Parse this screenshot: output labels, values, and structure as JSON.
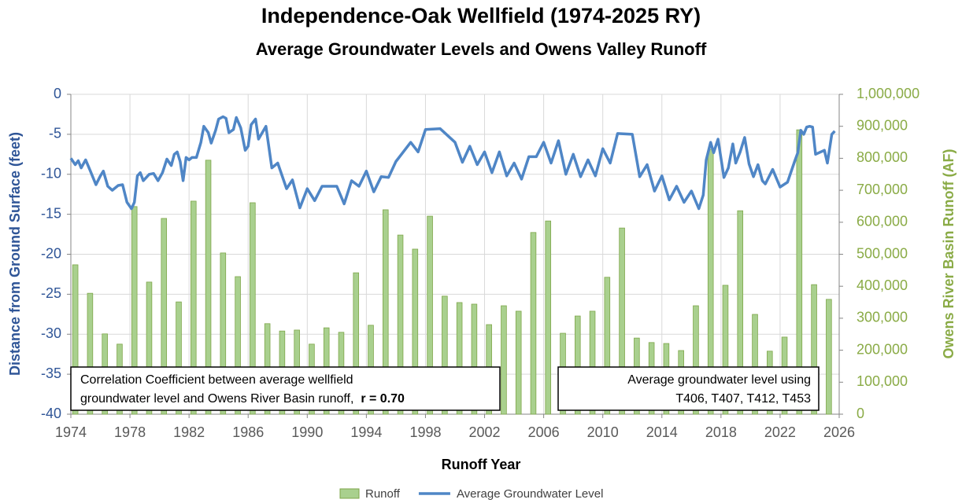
{
  "chart_data": {
    "type": "combo",
    "title": "Independence-Oak Wellfield (1974-2025 RY)",
    "subtitle": "Average Groundwater Levels and Owens Valley Runoff",
    "xlabel": "Runoff Year",
    "ylabel": "Distance from Ground Surface (feet)",
    "y2label": "Owens River Basin Runoff (AF)",
    "xlim": [
      1974,
      2026
    ],
    "xticks": [
      1974,
      1978,
      1982,
      1986,
      1990,
      1994,
      1998,
      2002,
      2006,
      2010,
      2014,
      2018,
      2022,
      2026
    ],
    "ylim": [
      -40,
      0
    ],
    "yticks": [
      0,
      -5,
      -10,
      -15,
      -20,
      -25,
      -30,
      -35,
      -40
    ],
    "y2lim": [
      0,
      1000000
    ],
    "y2ticks": [
      {
        "value": 1000000,
        "label": "1,000,000"
      },
      {
        "value": 900000,
        "label": "900,000"
      },
      {
        "value": 800000,
        "label": "800,000"
      },
      {
        "value": 700000,
        "label": "700,000"
      },
      {
        "value": 600000,
        "label": "600,000"
      },
      {
        "value": 500000,
        "label": "500,000"
      },
      {
        "value": 400000,
        "label": "400,000"
      },
      {
        "value": 300000,
        "label": "300,000"
      },
      {
        "value": 200000,
        "label": "200,000"
      },
      {
        "value": 100000,
        "label": "100,000"
      },
      {
        "value": 0,
        "label": "0"
      }
    ],
    "grid": true,
    "legend": "bottom",
    "series": [
      {
        "name": "Runoff",
        "type": "bar",
        "axis": "y2",
        "color": "#a9d08e",
        "x": [
          1974,
          1975,
          1976,
          1977,
          1978,
          1979,
          1980,
          1981,
          1982,
          1983,
          1984,
          1985,
          1986,
          1987,
          1988,
          1989,
          1990,
          1991,
          1992,
          1993,
          1994,
          1995,
          1996,
          1997,
          1998,
          1999,
          2000,
          2001,
          2002,
          2003,
          2004,
          2005,
          2006,
          2007,
          2008,
          2009,
          2010,
          2011,
          2012,
          2013,
          2014,
          2015,
          2016,
          2017,
          2018,
          2019,
          2020,
          2021,
          2022,
          2023,
          2024,
          2025
        ],
        "values": [
          467000,
          378000,
          251000,
          219000,
          649000,
          413000,
          612000,
          351000,
          666000,
          794000,
          504000,
          430000,
          661000,
          283000,
          260000,
          263000,
          219000,
          270000,
          256000,
          442000,
          278000,
          639000,
          560000,
          516000,
          619000,
          369000,
          349000,
          344000,
          280000,
          339000,
          322000,
          568000,
          604000,
          253000,
          307000,
          322000,
          428000,
          582000,
          238000,
          224000,
          221000,
          199000,
          339000,
          828000,
          403000,
          636000,
          312000,
          197000,
          241000,
          889000,
          405000,
          359000
        ]
      },
      {
        "name": "Average Groundwater Level",
        "type": "line",
        "color": "#4f86c6",
        "x": [
          1974.0,
          1974.3,
          1974.5,
          1974.7,
          1975.0,
          1975.3,
          1975.7,
          1976.0,
          1976.2,
          1976.5,
          1976.8,
          1977.2,
          1977.5,
          1977.8,
          1978.1,
          1978.3,
          1978.5,
          1978.7,
          1978.9,
          1979.3,
          1979.6,
          1979.9,
          1980.2,
          1980.5,
          1980.8,
          1981.0,
          1981.2,
          1981.4,
          1981.6,
          1981.8,
          1982.0,
          1982.2,
          1982.5,
          1982.8,
          1983.0,
          1983.3,
          1983.5,
          1983.8,
          1984.0,
          1984.3,
          1984.5,
          1984.7,
          1985.0,
          1985.2,
          1985.5,
          1985.8,
          1986.0,
          1986.2,
          1986.5,
          1986.7,
          1987.2,
          1987.6,
          1988.0,
          1988.6,
          1989.0,
          1989.5,
          1990.0,
          1990.5,
          1991.0,
          1992.0,
          1992.5,
          1993.0,
          1993.5,
          1994.0,
          1994.5,
          1995.0,
          1995.5,
          1996.0,
          1996.5,
          1997.0,
          1997.5,
          1998.0,
          1999.0,
          2000.0,
          2000.5,
          2001.0,
          2001.5,
          2002.0,
          2002.5,
          2003.0,
          2003.5,
          2004.0,
          2004.5,
          2005.0,
          2005.5,
          2006.0,
          2006.5,
          2007.0,
          2007.5,
          2008.0,
          2008.5,
          2009.0,
          2009.5,
          2010.0,
          2010.5,
          2011.0,
          2012.0,
          2012.5,
          2013.0,
          2013.5,
          2014.0,
          2014.5,
          2015.0,
          2015.5,
          2016.0,
          2016.5,
          2016.8,
          2017.0,
          2017.3,
          2017.5,
          2017.8,
          2018.2,
          2018.5,
          2018.8,
          2019.0,
          2019.3,
          2019.6,
          2019.9,
          2020.2,
          2020.5,
          2020.8,
          2021.0,
          2021.5,
          2022.0,
          2022.5,
          2023.0,
          2023.2,
          2023.4,
          2023.6,
          2023.8,
          2024.0,
          2024.2,
          2024.4,
          2025.0,
          2025.2,
          2025.5,
          2025.7
        ],
        "values": [
          -8,
          -8.8,
          -8.3,
          -9.2,
          -8.2,
          -9.5,
          -11.3,
          -10.2,
          -9.6,
          -11.5,
          -12,
          -11.4,
          -11.3,
          -13.5,
          -14.3,
          -13.5,
          -10.2,
          -9.8,
          -10.8,
          -10,
          -9.9,
          -10.8,
          -9.8,
          -8.1,
          -8.9,
          -7.5,
          -7.2,
          -8.4,
          -10.8,
          -7.9,
          -8.2,
          -7.9,
          -7.9,
          -6,
          -4,
          -4.8,
          -6.1,
          -4.5,
          -3.1,
          -2.8,
          -3,
          -4.8,
          -4.4,
          -2.9,
          -4.2,
          -7,
          -6.5,
          -3.8,
          -3.1,
          -5.6,
          -4,
          -9.2,
          -8.6,
          -11.8,
          -10.7,
          -14.2,
          -11.8,
          -13.3,
          -11.5,
          -11.5,
          -13.7,
          -10.8,
          -11.5,
          -9.6,
          -12.2,
          -10.3,
          -10.4,
          -8.4,
          -7.2,
          -6,
          -7.2,
          -4.4,
          -4.3,
          -6,
          -8.5,
          -6.5,
          -8.8,
          -7.2,
          -9.8,
          -7.2,
          -10.2,
          -8.6,
          -10.6,
          -7.8,
          -7.8,
          -6,
          -8.6,
          -5.8,
          -10,
          -7.5,
          -10.3,
          -8.2,
          -10.2,
          -6.8,
          -8.6,
          -4.9,
          -5,
          -10.3,
          -8.8,
          -12.1,
          -10.2,
          -13.2,
          -11.5,
          -13.5,
          -12.1,
          -14.3,
          -12.6,
          -8.2,
          -6,
          -7.3,
          -5.6,
          -10.4,
          -9.2,
          -6.2,
          -8.6,
          -7.2,
          -5.4,
          -8.7,
          -10.3,
          -8.8,
          -10.8,
          -11.2,
          -9.4,
          -11.6,
          -11,
          -8.3,
          -7.3,
          -4.5,
          -5,
          -4.1,
          -4,
          -4.1,
          -7.5,
          -7,
          -8.6,
          -5,
          -4.6
        ]
      }
    ],
    "annotations": [
      {
        "lines": [
          "Correlation Coefficient between average wellfield",
          "groundwater level and Owens River Basin runoff,"
        ],
        "emphasis": "r = 0.70"
      },
      {
        "lines": [
          "Average groundwater level using",
          "T406, T407, T412, T453"
        ]
      }
    ]
  }
}
